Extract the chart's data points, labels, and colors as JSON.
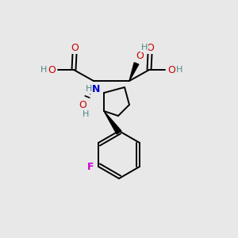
{
  "bg_color": "#e8e8e8",
  "bond_color": "#000000",
  "atom_colors": {
    "O": "#cc0000",
    "N": "#0000cc",
    "F": "#cc00cc",
    "C": "#000000",
    "H": "#4a8888"
  },
  "line_width": 1.4,
  "figsize": [
    3.0,
    3.0
  ],
  "dpi": 100
}
